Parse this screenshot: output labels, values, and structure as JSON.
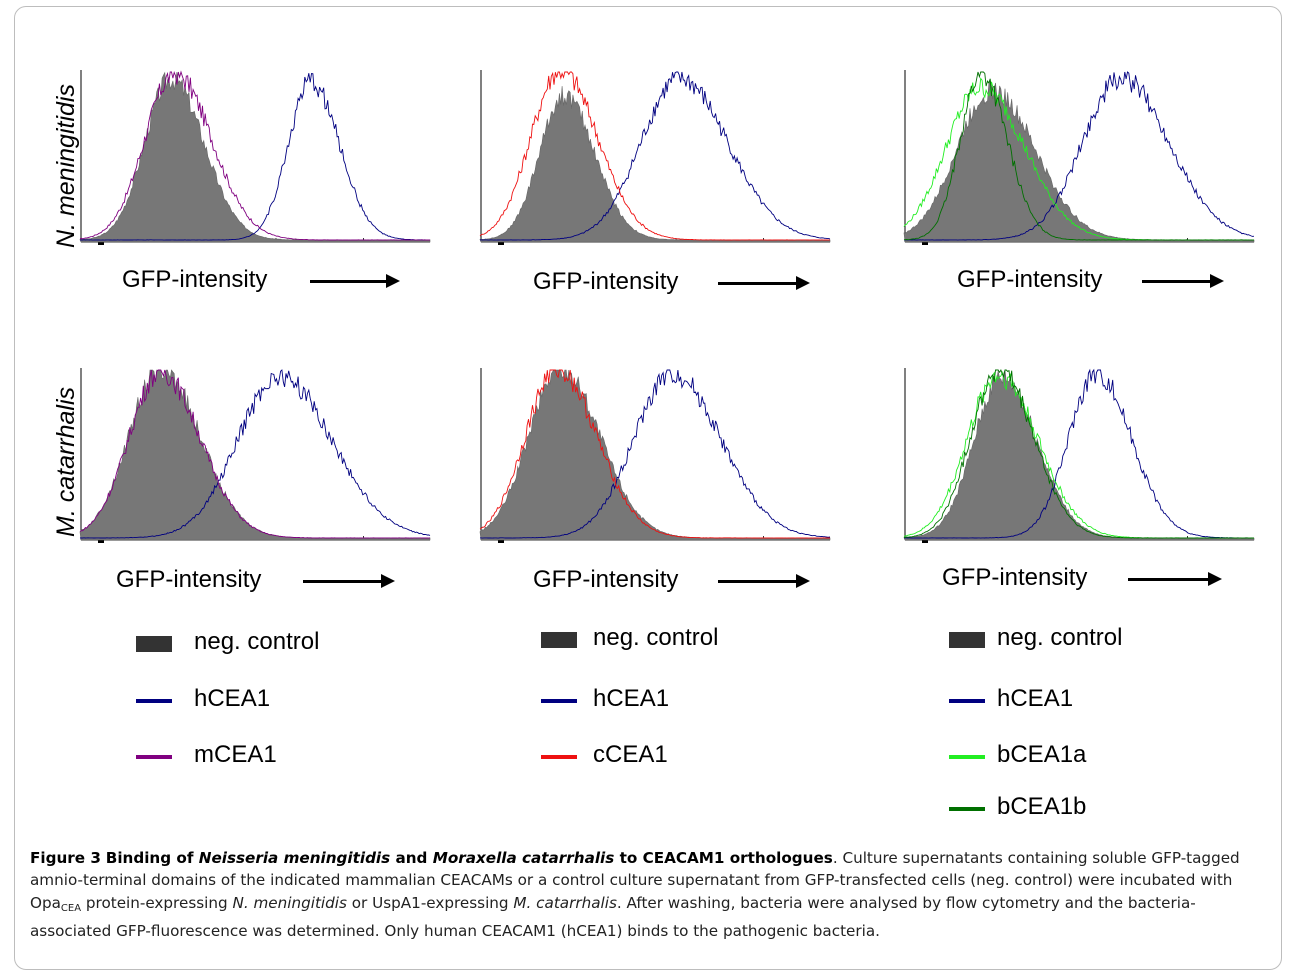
{
  "figure": {
    "row_labels": [
      "N. meningitidis",
      "M. catarrhalis"
    ],
    "xlabel": "GFP-intensity",
    "legends": [
      [
        {
          "label": "neg. control",
          "kind": "box",
          "color": "#333333"
        },
        {
          "label": "hCEA1",
          "kind": "line",
          "color": "#000080"
        },
        {
          "label": "mCEA1",
          "kind": "line",
          "color": "#800080"
        }
      ],
      [
        {
          "label": "neg. control",
          "kind": "box",
          "color": "#333333"
        },
        {
          "label": "hCEA1",
          "kind": "line",
          "color": "#000080"
        },
        {
          "label": "cCEA1",
          "kind": "line",
          "color": "#ee1111"
        }
      ],
      [
        {
          "label": "neg. control",
          "kind": "box",
          "color": "#333333"
        },
        {
          "label": "hCEA1",
          "kind": "line",
          "color": "#000080"
        },
        {
          "label": "bCEA1a",
          "kind": "line",
          "color": "#22ee22"
        },
        {
          "label": "bCEA1b",
          "kind": "line",
          "color": "#007000"
        }
      ]
    ]
  },
  "chart_data": [
    {
      "type": "area",
      "row": "N. meningitidis",
      "xlabel": "GFP-intensity",
      "xrange": [
        0,
        1
      ],
      "series": [
        {
          "name": "neg. control",
          "color": "#888888",
          "fill": true,
          "peak": 0.26,
          "width": 0.075,
          "height": 0.95
        },
        {
          "name": "hCEA1",
          "color": "#000080",
          "peak": 0.66,
          "width": 0.065,
          "height": 0.93
        },
        {
          "name": "mCEA1",
          "color": "#800080",
          "peak": 0.27,
          "width": 0.085,
          "height": 0.98
        }
      ]
    },
    {
      "type": "area",
      "row": "N. meningitidis",
      "xlabel": "GFP-intensity",
      "xrange": [
        0,
        1
      ],
      "series": [
        {
          "name": "neg. control",
          "color": "#888888",
          "fill": true,
          "peak": 0.24,
          "width": 0.07,
          "height": 0.85
        },
        {
          "name": "hCEA1",
          "color": "#000080",
          "peak": 0.57,
          "width": 0.11,
          "height": 0.95
        },
        {
          "name": "cCEA1",
          "color": "#ee1111",
          "peak": 0.23,
          "width": 0.085,
          "height": 1.0
        }
      ]
    },
    {
      "type": "area",
      "row": "N. meningitidis",
      "xlabel": "GFP-intensity",
      "xrange": [
        0,
        1
      ],
      "series": [
        {
          "name": "neg. control",
          "color": "#888888",
          "fill": true,
          "peak": 0.25,
          "width": 0.1,
          "height": 0.88
        },
        {
          "name": "hCEA1",
          "color": "#000080",
          "peak": 0.62,
          "width": 0.11,
          "height": 0.95
        },
        {
          "name": "bCEA1a",
          "color": "#22ee22",
          "peak": 0.22,
          "width": 0.1,
          "height": 0.9
        },
        {
          "name": "bCEA1b",
          "color": "#007000",
          "peak": 0.22,
          "width": 0.06,
          "height": 0.98
        }
      ]
    },
    {
      "type": "area",
      "row": "M. catarrhalis",
      "xlabel": "GFP-intensity",
      "xrange": [
        0,
        1
      ],
      "series": [
        {
          "name": "neg. control",
          "color": "#888888",
          "fill": true,
          "peak": 0.23,
          "width": 0.09,
          "height": 1.0
        },
        {
          "name": "hCEA1",
          "color": "#000080",
          "peak": 0.57,
          "width": 0.12,
          "height": 0.95
        },
        {
          "name": "mCEA1",
          "color": "#800080",
          "peak": 0.23,
          "width": 0.09,
          "height": 0.98
        }
      ]
    },
    {
      "type": "area",
      "row": "M. catarrhalis",
      "xlabel": "GFP-intensity",
      "xrange": [
        0,
        1
      ],
      "series": [
        {
          "name": "neg. control",
          "color": "#888888",
          "fill": true,
          "peak": 0.23,
          "width": 0.09,
          "height": 1.0
        },
        {
          "name": "hCEA1",
          "color": "#000080",
          "peak": 0.55,
          "width": 0.11,
          "height": 0.97
        },
        {
          "name": "cCEA1",
          "color": "#ee1111",
          "peak": 0.22,
          "width": 0.09,
          "height": 1.0
        }
      ]
    },
    {
      "type": "area",
      "row": "M. catarrhalis",
      "xlabel": "GFP-intensity",
      "xrange": [
        0,
        1
      ],
      "series": [
        {
          "name": "neg. control",
          "color": "#888888",
          "fill": true,
          "peak": 0.28,
          "width": 0.08,
          "height": 0.95
        },
        {
          "name": "hCEA1",
          "color": "#000080",
          "peak": 0.55,
          "width": 0.08,
          "height": 0.97
        },
        {
          "name": "bCEA1a",
          "color": "#22ee22",
          "peak": 0.27,
          "width": 0.09,
          "height": 0.96
        },
        {
          "name": "bCEA1b",
          "color": "#007000",
          "peak": 0.27,
          "width": 0.08,
          "height": 0.99
        }
      ]
    }
  ],
  "caption": {
    "label": "Figure 3",
    "title_1": "Binding of ",
    "title_i1": "Neisseria meningitidis",
    "title_2": " and ",
    "title_i2": "Moraxella catarrhalis",
    "title_3": " to CEACAM1 orthologues",
    "text_1": ". Culture supernatants containing soluble GFP-tagged amnio-terminal domains of the indicated mammalian CEACAMs or a control culture supernatant from GFP-transfected cells (neg. control) were incubated with Opa",
    "subscript": "CEA",
    "text_2": " protein-expressing ",
    "text_i1": "N. meningitidis",
    "text_3": " or UspA1-expressing ",
    "text_i2": "M. catarrhalis",
    "text_4": ". After washing, bacteria were analysed by flow cytometry and the bacteria-associated GFP-fluorescence was determined. Only human CEACAM1 (hCEA1) binds to the pathogenic bacteria."
  }
}
